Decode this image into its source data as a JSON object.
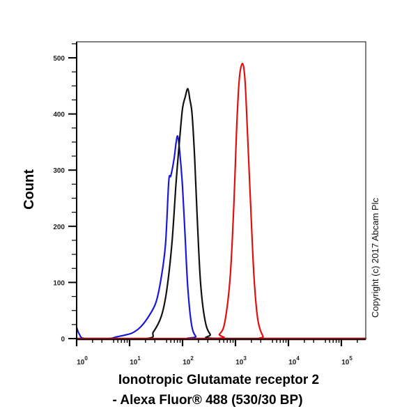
{
  "chart_data": {
    "type": "line",
    "title": "",
    "xlabel_line1": "Ionotropic Glutamate receptor 2",
    "xlabel_line2": "- Alexa Fluor® 488 (530/30 BP)",
    "ylabel": "Count",
    "x_scale": "log10",
    "xlim_log10": [
      0,
      5.47
    ],
    "ylim": [
      0,
      530
    ],
    "x_ticks": [
      {
        "base": "10",
        "exp": "0"
      },
      {
        "base": "10",
        "exp": "1"
      },
      {
        "base": "10",
        "exp": "2"
      },
      {
        "base": "10",
        "exp": "3"
      },
      {
        "base": "10",
        "exp": "4"
      },
      {
        "base": "10",
        "exp": "5"
      }
    ],
    "y_ticks": [
      0,
      100,
      200,
      300,
      400,
      500
    ],
    "grid": false,
    "series": [
      {
        "name": "blue",
        "color": "#1a1ad6",
        "x_log10": [
          0,
          0.05,
          0.15,
          0.6,
          0.75,
          0.9,
          1.05,
          1.2,
          1.35,
          1.5,
          1.6,
          1.68,
          1.74,
          1.78,
          1.84,
          1.88,
          1.91,
          1.95,
          2.0,
          2.05,
          2.1,
          2.17,
          2.25,
          2.35,
          5.47
        ],
        "values": [
          20,
          8,
          0,
          0,
          3,
          6,
          10,
          20,
          38,
          65,
          110,
          170,
          280,
          290,
          320,
          350,
          360,
          330,
          270,
          180,
          90,
          25,
          4,
          0,
          0
        ]
      },
      {
        "name": "black",
        "color": "#111111",
        "x_log10": [
          0,
          1.3,
          1.45,
          1.6,
          1.7,
          1.8,
          1.88,
          1.95,
          2.0,
          2.05,
          2.1,
          2.14,
          2.18,
          2.23,
          2.28,
          2.34,
          2.42,
          2.52,
          2.7,
          5.47
        ],
        "values": [
          0,
          0,
          12,
          40,
          85,
          170,
          280,
          360,
          410,
          430,
          445,
          425,
          400,
          320,
          210,
          100,
          35,
          8,
          0,
          0
        ]
      },
      {
        "name": "red",
        "color": "#e01010",
        "x_log10": [
          0,
          2.55,
          2.7,
          2.8,
          2.9,
          2.97,
          3.02,
          3.07,
          3.13,
          3.18,
          3.23,
          3.29,
          3.35,
          3.42,
          3.52,
          3.6,
          5.47
        ],
        "values": [
          0,
          0,
          8,
          30,
          110,
          240,
          370,
          460,
          490,
          460,
          360,
          230,
          110,
          35,
          4,
          0,
          0
        ]
      }
    ]
  },
  "copyright": "Copyright (c) 2017 Abcam Plc"
}
